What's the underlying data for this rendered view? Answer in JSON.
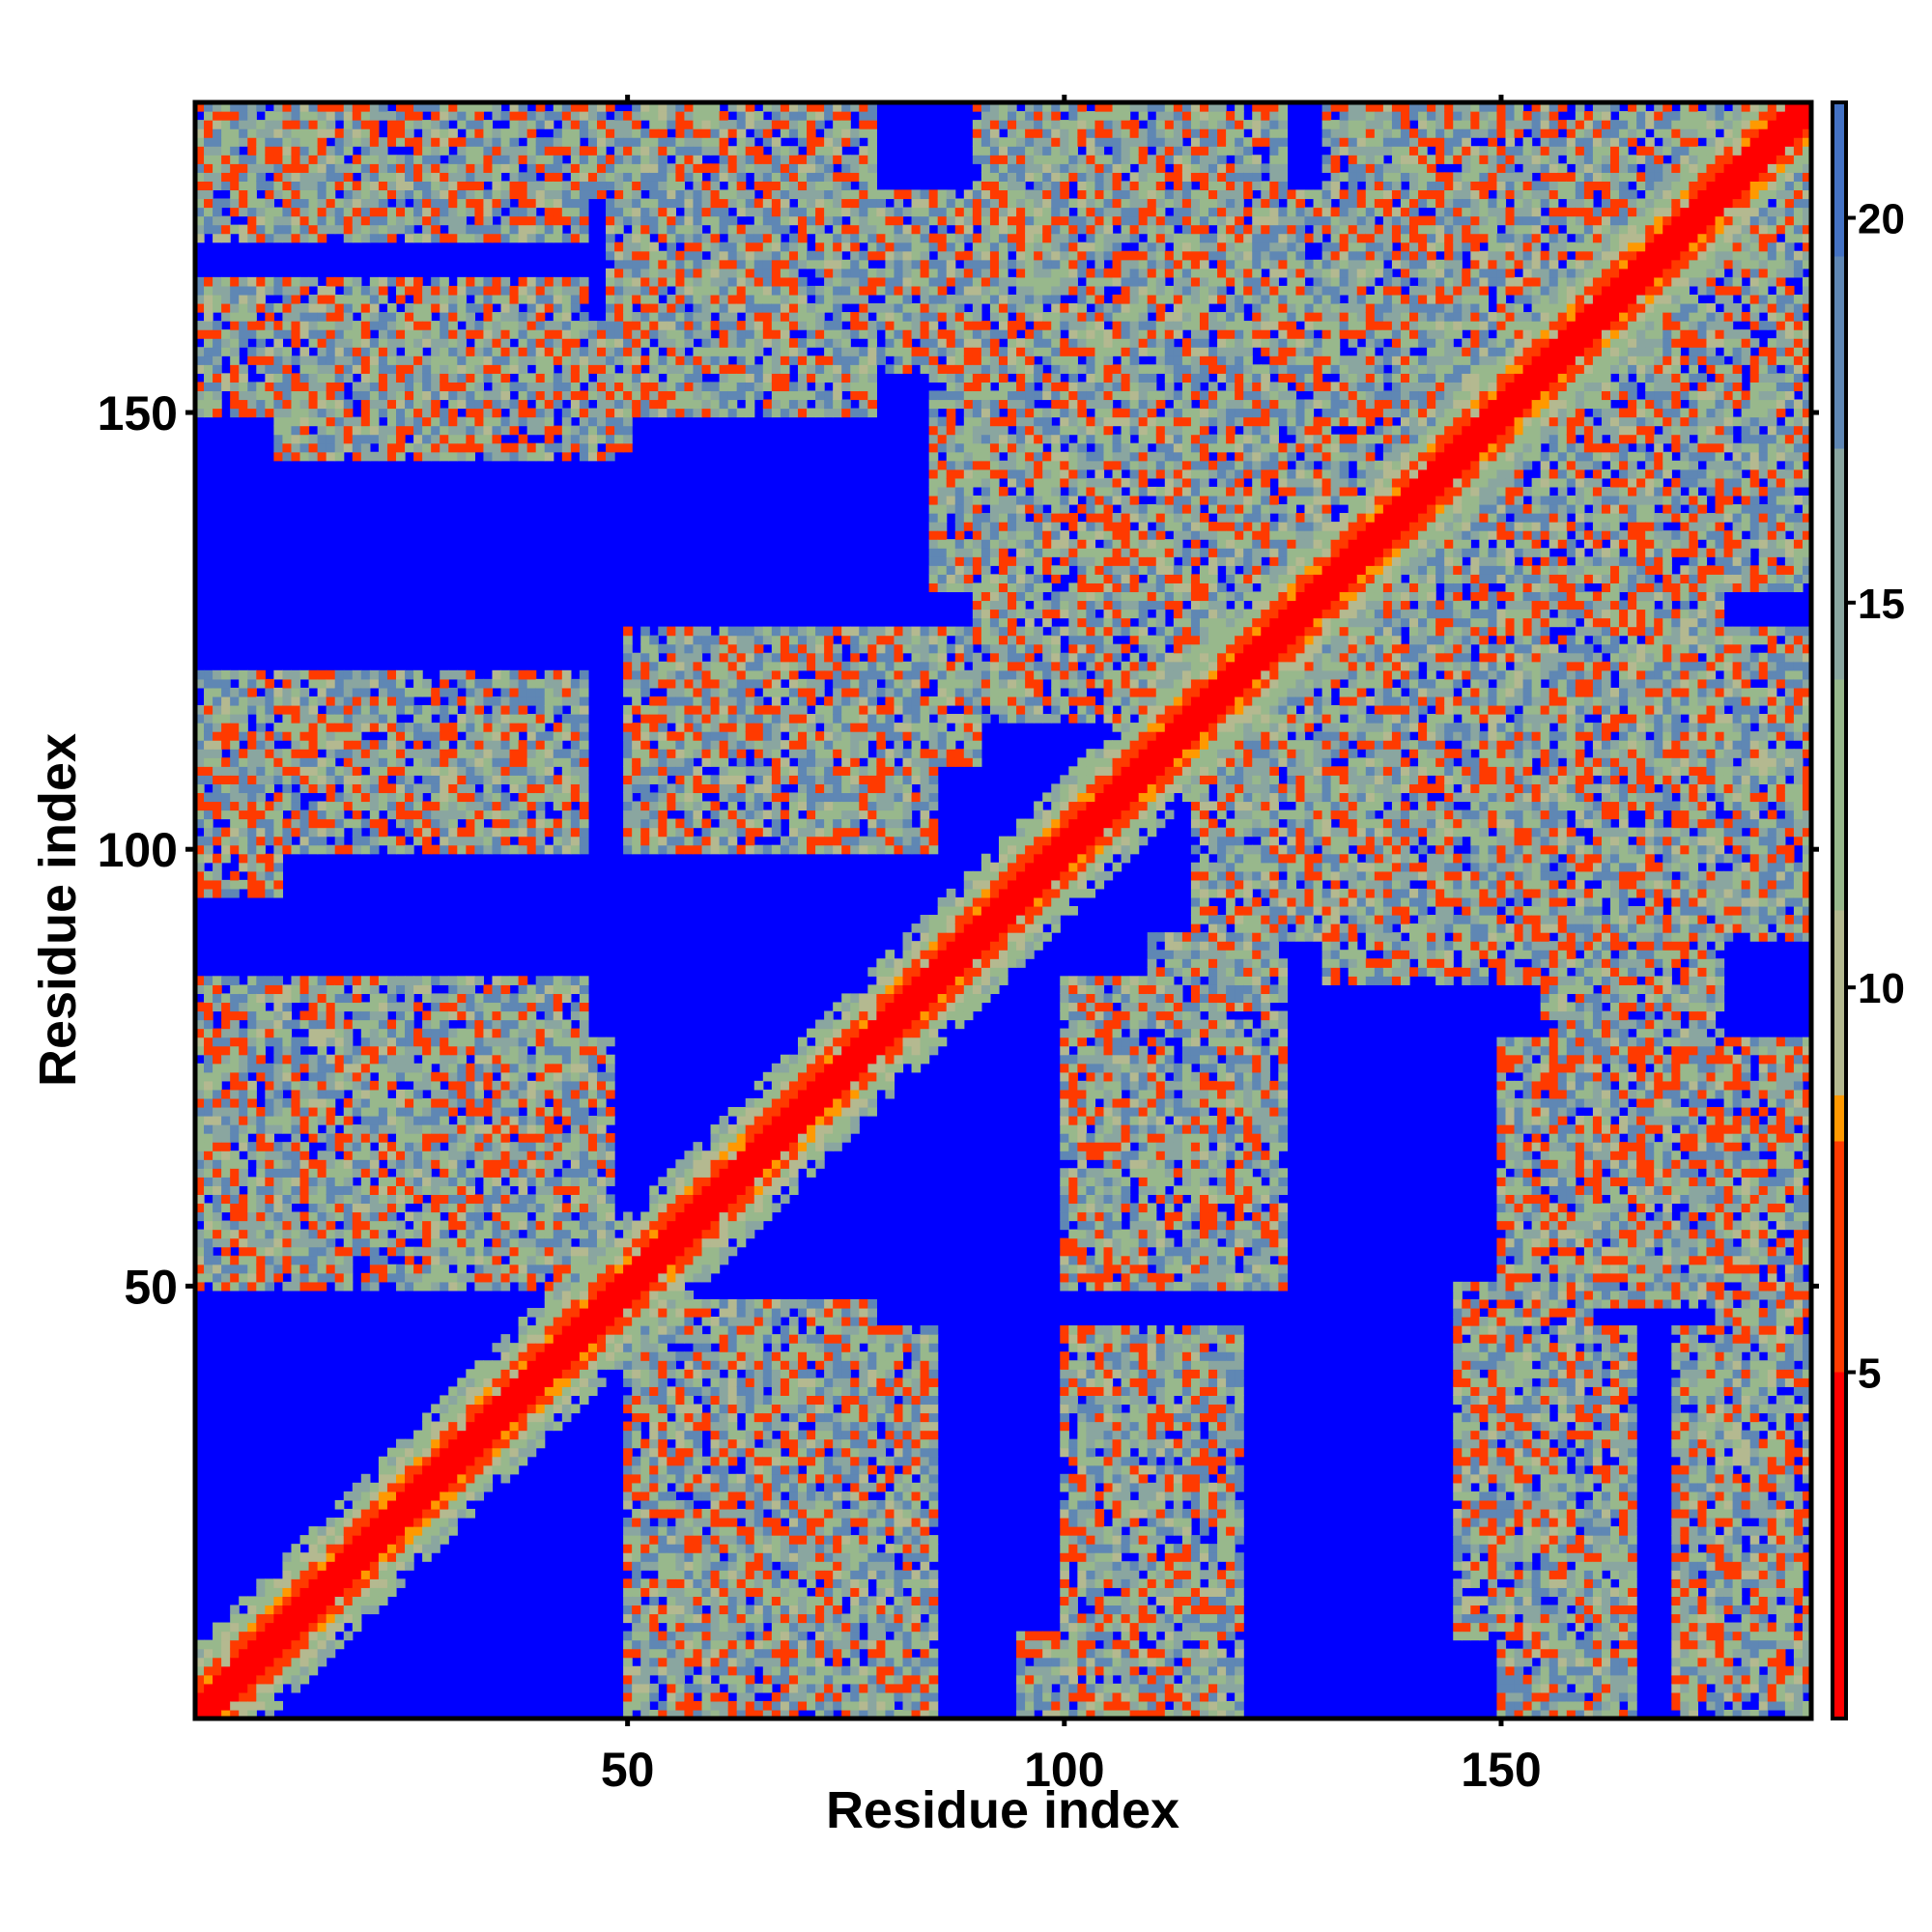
{
  "chart_data": {
    "type": "heatmap",
    "xlabel": "Residue index",
    "ylabel": "Residue index",
    "n_residues": 185,
    "xlim": [
      1,
      185
    ],
    "ylim": [
      1,
      185
    ],
    "x_ticks": [
      50,
      100,
      150
    ],
    "y_ticks": [
      50,
      100,
      150
    ],
    "colorbar": {
      "ticks": [
        5,
        10,
        15,
        20
      ],
      "range": [
        0.5,
        21.5
      ],
      "colors": [
        {
          "value": 0.5,
          "color": "#ff0000"
        },
        {
          "value": 5,
          "color": "#ff3a00"
        },
        {
          "value": 8,
          "color": "#ff9900"
        },
        {
          "value": 8.6,
          "color": "#b4b990"
        },
        {
          "value": 11,
          "color": "#98b88c"
        },
        {
          "value": 14,
          "color": "#8aa6a0"
        },
        {
          "value": 17,
          "color": "#5f87b4"
        },
        {
          "value": 19.5,
          "color": "#4472c4"
        },
        {
          "value": 21.5,
          "color": "#1f3fbf"
        }
      ]
    },
    "background_value": 21.5,
    "background_color": "#0000ff",
    "contact_bands": [
      {
        "x": [
          15,
          48
        ],
        "y": [
          50,
          78
        ]
      },
      {
        "x": [
          50,
          85
        ],
        "y": [
          1,
          45
        ]
      },
      {
        "x": [
          100,
          120
        ],
        "y": [
          1,
          45
        ]
      },
      {
        "x": [
          150,
          165
        ],
        "y": [
          1,
          45
        ]
      },
      {
        "x": [
          170,
          185
        ],
        "y": [
          1,
          45
        ]
      },
      {
        "x": [
          110,
          125
        ],
        "y": [
          50,
          90
        ]
      },
      {
        "x": [
          150,
          185
        ],
        "y": [
          48,
          78
        ]
      },
      {
        "x": [
          1,
          10
        ],
        "y": [
          95,
          115
        ]
      },
      {
        "x": [
          20,
          45
        ],
        "y": [
          108,
          118
        ]
      },
      {
        "x": [
          50,
          85
        ],
        "y": [
          100,
          125
        ]
      },
      {
        "x": [
          85,
          130
        ],
        "y": [
          130,
          175
        ]
      },
      {
        "x": [
          10,
          50
        ],
        "y": [
          145,
          160
        ]
      },
      {
        "x": [
          50,
          85
        ],
        "y": [
          155,
          175
        ]
      },
      {
        "x": [
          10,
          50
        ],
        "y": [
          175,
          185
        ]
      },
      {
        "x": [
          50,
          60
        ],
        "y": [
          175,
          185
        ]
      },
      {
        "x": [
          115,
          185
        ],
        "y": [
          90,
          125
        ]
      },
      {
        "x": [
          130,
          185
        ],
        "y": [
          140,
          185
        ]
      }
    ]
  }
}
